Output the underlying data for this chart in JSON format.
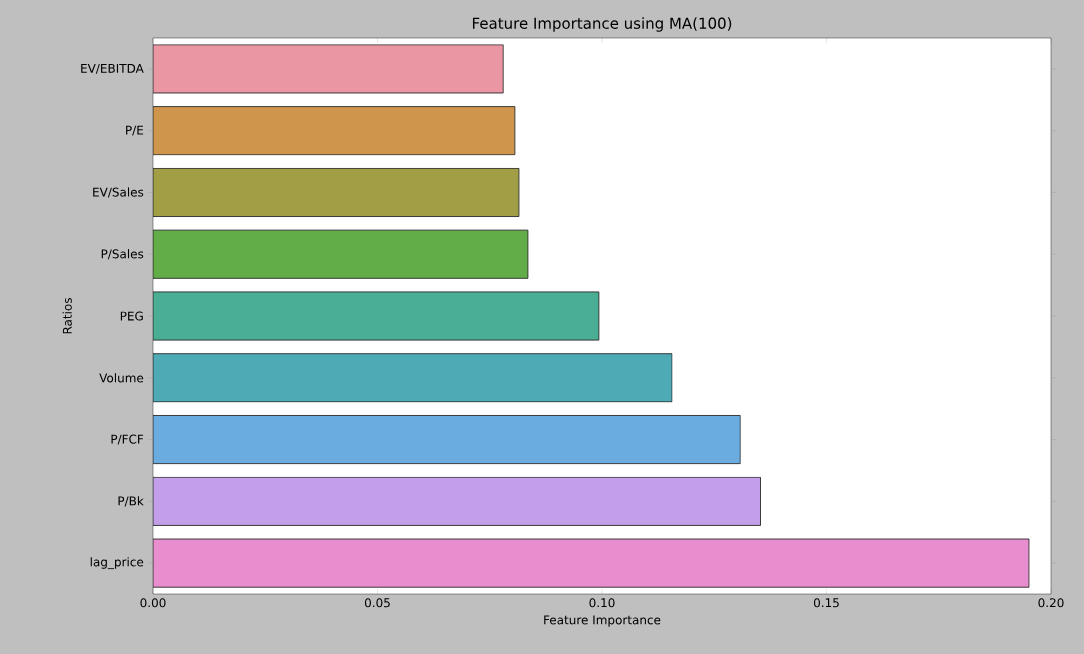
{
  "chart_data": {
    "type": "bar",
    "orientation": "horizontal",
    "title": "Feature Importance using MA(100)",
    "xlabel": "Feature Importance",
    "ylabel": "Ratios",
    "categories": [
      "EV/EBITDA",
      "P/E",
      "EV/Sales",
      "P/Sales",
      "PEG",
      "Volume",
      "P/FCF",
      "P/Bk",
      "lag_price"
    ],
    "values": [
      0.078,
      0.0806,
      0.0815,
      0.0835,
      0.0993,
      0.1156,
      0.1308,
      0.1353,
      0.1951
    ],
    "colors": [
      "#ea96a3",
      "#d0954c",
      "#a19e46",
      "#62ad48",
      "#4aae95",
      "#4eaab5",
      "#6aace0",
      "#c39fea",
      "#e88ecf"
    ],
    "xlim": [
      0,
      0.2
    ],
    "xticks": [
      {
        "value": 0,
        "label": "0.00"
      },
      0.05,
      {
        "value": 0.1,
        "label": "0.10"
      },
      0.15,
      {
        "value": 0.2,
        "label": "0.20"
      }
    ]
  }
}
